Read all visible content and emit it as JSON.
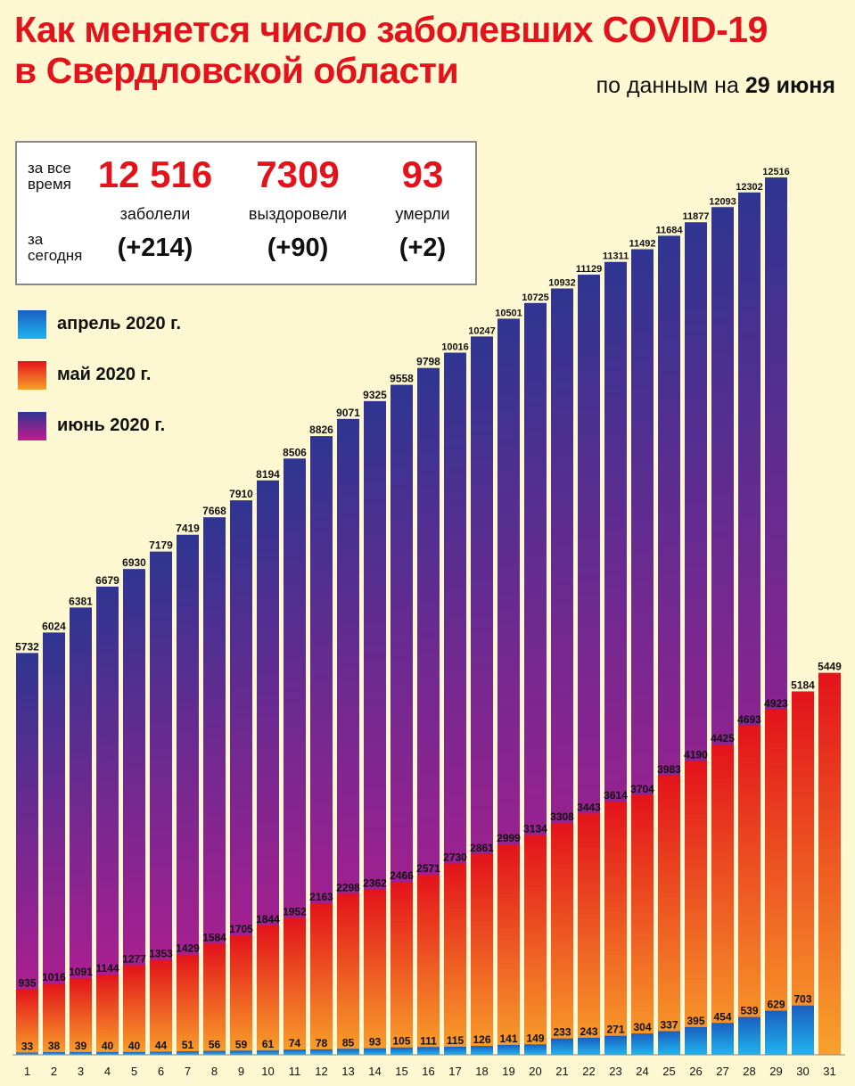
{
  "title": {
    "line1": "Как  меняется число  заболевших COVID-19",
    "line2": "в Свердловской области"
  },
  "subtitle": {
    "prefix": "по данным на ",
    "date": "29 июня"
  },
  "stats": {
    "total_label_1": "за все",
    "total_label_2": "время",
    "today_label_1": "за",
    "today_label_2": "сегодня",
    "infected": {
      "value": "12 516",
      "label": "заболели",
      "delta": "(+214)"
    },
    "recovered": {
      "value": "7309",
      "label": "выздоровели",
      "delta": "(+90)"
    },
    "died": {
      "value": "93",
      "label": "умерли",
      "delta": "(+2)"
    }
  },
  "legend": [
    {
      "label": "апрель 2020 г.",
      "color": "#1a9be0"
    },
    {
      "label": "май 2020 г.",
      "color": "#ee4d1e"
    },
    {
      "label": "июнь 2020 г.",
      "color": "#8a2aa6"
    }
  ],
  "colors": {
    "april_top": "#1a5fc0",
    "april_bottom": "#20b4ef",
    "may_top": "#e3131b",
    "may_bottom": "#f8a12a",
    "june_top": "#2f3591",
    "june_bottom": "#c41a90",
    "title": "#e3131b"
  },
  "chart_data": {
    "type": "bar",
    "categories": [
      "1",
      "2",
      "3",
      "4",
      "5",
      "6",
      "7",
      "8",
      "9",
      "10",
      "11",
      "12",
      "13",
      "14",
      "15",
      "16",
      "17",
      "18",
      "19",
      "20",
      "21",
      "22",
      "23",
      "24",
      "25",
      "26",
      "27",
      "28",
      "29",
      "30",
      "31"
    ],
    "series": [
      {
        "name": "апрель 2020 г.",
        "values": [
          33,
          38,
          39,
          40,
          40,
          44,
          51,
          56,
          59,
          61,
          74,
          78,
          85,
          93,
          105,
          111,
          115,
          126,
          141,
          149,
          233,
          243,
          271,
          304,
          337,
          395,
          454,
          539,
          629,
          703,
          null
        ]
      },
      {
        "name": "май 2020 г.",
        "values": [
          935,
          1016,
          1091,
          1144,
          1277,
          1353,
          1429,
          1584,
          1705,
          1844,
          1952,
          2163,
          2298,
          2362,
          2466,
          2571,
          2730,
          2861,
          2999,
          3134,
          3308,
          3443,
          3614,
          3704,
          3983,
          4190,
          4425,
          4693,
          4923,
          5184,
          5449
        ]
      },
      {
        "name": "июнь 2020 г.",
        "values": [
          5732,
          6024,
          6381,
          6679,
          6930,
          7179,
          7419,
          7668,
          7910,
          8194,
          8506,
          8826,
          9071,
          9325,
          9558,
          9798,
          10016,
          10247,
          10501,
          10725,
          10932,
          11129,
          11311,
          11492,
          11684,
          11877,
          12093,
          12302,
          12516,
          null,
          null
        ]
      }
    ],
    "ylim": [
      0,
      12516
    ],
    "layout": "overlaid"
  }
}
